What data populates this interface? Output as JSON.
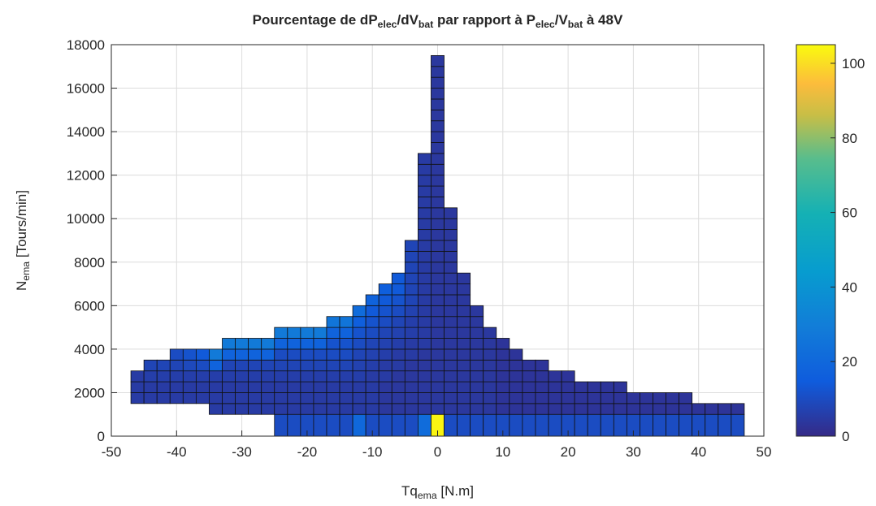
{
  "chart_data": {
    "type": "heatmap",
    "title": [
      "Pourcentage de dP",
      "elec",
      "/dV",
      "bat",
      " par rapport à P",
      "elec",
      "/V",
      "bat",
      " à 48V"
    ],
    "xlabel": [
      "Tq",
      "ema",
      " [N.m]"
    ],
    "ylabel": [
      "N",
      "ema",
      " [Tours/min]"
    ],
    "xlim": [
      -50,
      50
    ],
    "xticks": [
      -50,
      -40,
      -30,
      -20,
      -10,
      0,
      10,
      20,
      30,
      40,
      50
    ],
    "ylim": [
      0,
      18000
    ],
    "yticks": [
      0,
      2000,
      4000,
      6000,
      8000,
      10000,
      12000,
      14000,
      16000,
      18000
    ],
    "grid": true,
    "colormap": "parula",
    "clim": [
      0,
      105
    ],
    "cticks": [
      0,
      20,
      40,
      60,
      80,
      100
    ],
    "x_edges": [
      -47,
      -45,
      -43,
      -41,
      -39,
      -37,
      -35,
      -33,
      -31,
      -29,
      -27,
      -25,
      -23,
      -21,
      -19,
      -17,
      -15,
      -13,
      -11,
      -9,
      -7,
      -5,
      -3,
      -1,
      1,
      3,
      5,
      7,
      9,
      11,
      13,
      15,
      17,
      19,
      21,
      23,
      25,
      27,
      29,
      31,
      33,
      35,
      37,
      39,
      41,
      43,
      45,
      47
    ],
    "y_edges": [
      0,
      1000,
      1500,
      2000,
      2500,
      3000,
      3500,
      4000,
      4500,
      5000,
      5500,
      6000,
      6500,
      7000,
      7500,
      8000,
      8500,
      9000,
      9500,
      10000,
      10500,
      11000,
      11500,
      12000,
      12500,
      13000,
      13500,
      14000,
      14500,
      15000,
      15500,
      16000,
      16500,
      17000,
      17500
    ],
    "z": [
      [
        null,
        null,
        5,
        5,
        5
      ],
      [
        null,
        null,
        5,
        5,
        6,
        8
      ],
      [
        null,
        null,
        5,
        5,
        6,
        8
      ],
      [
        null,
        null,
        5,
        5,
        6,
        8,
        10
      ],
      [
        null,
        null,
        5,
        5,
        6,
        9,
        12
      ],
      [
        null,
        null,
        5,
        5,
        6,
        10,
        14
      ],
      [
        null,
        5,
        5,
        5,
        6,
        18,
        28
      ],
      [
        null,
        5,
        5,
        5,
        6,
        8,
        18,
        28
      ],
      [
        null,
        5,
        5,
        5,
        6,
        8,
        18,
        28
      ],
      [
        null,
        5,
        5,
        5,
        6,
        8,
        18,
        28
      ],
      [
        null,
        5,
        5,
        5,
        6,
        8,
        18,
        28
      ],
      [
        10,
        5,
        5,
        5,
        6,
        8,
        10,
        18,
        28
      ],
      [
        10,
        5,
        5,
        5,
        6,
        8,
        10,
        18,
        28
      ],
      [
        10,
        5,
        5,
        5,
        6,
        8,
        10,
        18,
        28
      ],
      [
        10,
        5,
        5,
        5,
        6,
        8,
        10,
        18,
        28
      ],
      [
        10,
        5,
        5,
        5,
        6,
        8,
        10,
        12,
        18,
        26
      ],
      [
        10,
        5,
        5,
        5,
        6,
        8,
        10,
        12,
        18,
        26
      ],
      [
        20,
        5,
        5,
        5,
        6,
        7,
        8,
        10,
        12,
        16,
        22
      ],
      [
        10,
        5,
        5,
        5,
        5,
        6,
        7,
        8,
        10,
        12,
        14,
        18
      ],
      [
        10,
        4,
        4,
        4,
        5,
        5,
        6,
        7,
        8,
        10,
        12,
        14,
        16
      ],
      [
        10,
        4,
        4,
        4,
        4,
        5,
        5,
        6,
        7,
        8,
        10,
        12,
        14,
        14
      ],
      [
        10,
        4,
        4,
        4,
        4,
        4,
        5,
        5,
        6,
        6,
        7,
        8,
        8,
        8,
        8,
        8,
        8
      ],
      [
        22,
        4,
        4,
        4,
        4,
        4,
        4,
        5,
        5,
        5,
        5,
        5,
        5,
        5,
        5,
        5,
        5,
        5,
        5,
        5,
        5,
        5,
        5,
        5,
        5
      ],
      [
        104,
        4,
        4,
        4,
        4,
        4,
        4,
        4,
        4,
        4,
        4,
        4,
        4,
        4,
        4,
        4,
        4,
        4,
        4,
        4,
        4,
        4,
        4,
        4,
        4,
        4,
        4,
        4,
        4,
        4,
        4,
        4,
        4,
        4
      ],
      [
        10,
        4,
        4,
        4,
        4,
        4,
        4,
        4,
        4,
        4,
        4,
        4,
        4,
        4,
        4,
        4,
        4,
        4,
        4,
        4
      ],
      [
        10,
        4,
        4,
        4,
        4,
        4,
        4,
        4,
        4,
        4,
        4,
        4,
        4,
        4
      ],
      [
        10,
        4,
        4,
        4,
        4,
        4,
        4,
        4,
        4,
        4,
        4
      ],
      [
        10,
        4,
        4,
        4,
        4,
        4,
        4,
        4,
        4
      ],
      [
        10,
        3,
        3,
        3,
        3,
        3,
        3,
        3
      ],
      [
        10,
        3,
        3,
        3,
        3,
        3,
        3
      ],
      [
        10,
        3,
        3,
        3,
        3,
        3
      ],
      [
        10,
        3,
        3,
        3,
        3,
        3
      ],
      [
        10,
        3,
        3,
        3,
        3
      ],
      [
        10,
        3,
        3,
        3,
        3
      ],
      [
        10,
        3,
        3,
        3
      ],
      [
        10,
        3,
        3,
        3
      ],
      [
        10,
        3,
        3,
        3
      ],
      [
        10,
        3,
        3,
        3
      ],
      [
        10,
        3,
        3
      ],
      [
        10,
        3,
        3
      ],
      [
        10,
        3,
        3
      ],
      [
        10,
        3,
        3
      ],
      [
        10,
        3,
        3
      ],
      [
        10,
        3
      ],
      [
        10,
        3
      ],
      [
        10,
        3
      ],
      [
        10,
        3
      ]
    ]
  }
}
